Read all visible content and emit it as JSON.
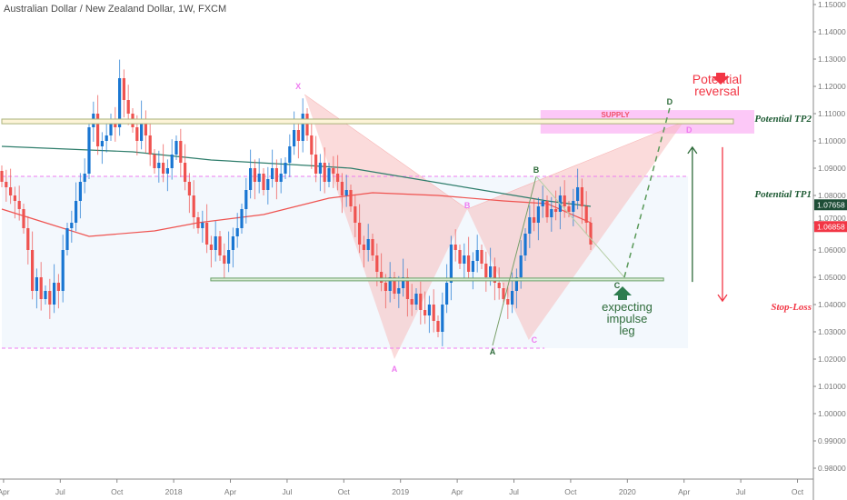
{
  "header": {
    "title": "Australian Dollar / New Zealand Dollar, 1W, FXCM"
  },
  "colors": {
    "up": "#1976d2",
    "down": "#ef5350",
    "ma_slow": "#2e7d6b",
    "ma_fast": "#ef5350",
    "pattern_pink": "#f7b7b7",
    "pattern_label": "#ee7bf0",
    "green": "#2e6b3a",
    "red": "#f23645"
  },
  "chart_data": {
    "type": "candlestick",
    "title": "Australian Dollar / New Zealand Dollar, 1W, FXCM",
    "ylim": [
      0.975,
      1.152
    ],
    "xlim_weeks": [
      0,
      193
    ],
    "y_ticks": [
      "1.15000",
      "1.14000",
      "1.13000",
      "1.12000",
      "1.11000",
      "1.10000",
      "1.09000",
      "1.08000",
      "1.07000",
      "1.06000",
      "1.05000",
      "1.04000",
      "1.03000",
      "1.02000",
      "1.01000",
      "1.00000",
      "0.99000",
      "0.98000"
    ],
    "y_tick_values": [
      1.15,
      1.14,
      1.13,
      1.12,
      1.11,
      1.1,
      1.09,
      1.08,
      1.07,
      1.06,
      1.05,
      1.04,
      1.03,
      1.02,
      1.01,
      1.0,
      0.99,
      0.98
    ],
    "x_ticks": [
      {
        "label": "Apr",
        "week": 0.4
      },
      {
        "label": "Jul",
        "week": 13.4
      },
      {
        "label": "Oct",
        "week": 26.4
      },
      {
        "label": "2018",
        "week": 39.4
      },
      {
        "label": "Apr",
        "week": 52.4
      },
      {
        "label": "Jul",
        "week": 65.4
      },
      {
        "label": "Oct",
        "week": 78.4
      },
      {
        "label": "2019",
        "week": 91.4
      },
      {
        "label": "Apr",
        "week": 104.4
      },
      {
        "label": "Jul",
        "week": 117.4
      },
      {
        "label": "Oct",
        "week": 130.4
      },
      {
        "label": "2020",
        "week": 143.4
      },
      {
        "label": "Apr",
        "week": 156.4
      },
      {
        "label": "Jul",
        "week": 169.4
      },
      {
        "label": "Oct",
        "week": 182.4
      }
    ],
    "closes": [
      1.085,
      1.083,
      1.08,
      1.078,
      1.075,
      1.068,
      1.06,
      1.045,
      1.05,
      1.042,
      1.045,
      1.04,
      1.048,
      1.045,
      1.06,
      1.068,
      1.07,
      1.078,
      1.085,
      1.088,
      1.105,
      1.11,
      1.098,
      1.1,
      1.102,
      1.108,
      1.105,
      1.123,
      1.115,
      1.11,
      1.105,
      1.1,
      1.108,
      1.102,
      1.095,
      1.09,
      1.092,
      1.088,
      1.09,
      1.095,
      1.1,
      1.092,
      1.085,
      1.08,
      1.072,
      1.068,
      1.07,
      1.062,
      1.06,
      1.065,
      1.058,
      1.055,
      1.06,
      1.065,
      1.068,
      1.075,
      1.082,
      1.09,
      1.085,
      1.088,
      1.082,
      1.086,
      1.09,
      1.085,
      1.088,
      1.092,
      1.098,
      1.104,
      1.1,
      1.11,
      1.102,
      1.095,
      1.088,
      1.092,
      1.085,
      1.09,
      1.088,
      1.085,
      1.08,
      1.082,
      1.076,
      1.07,
      1.062,
      1.06,
      1.064,
      1.058,
      1.052,
      1.048,
      1.045,
      1.05,
      1.044,
      1.046,
      1.05,
      1.042,
      1.04,
      1.044,
      1.038,
      1.036,
      1.04,
      1.034,
      1.03,
      1.04,
      1.048,
      1.062,
      1.06,
      1.055,
      1.058,
      1.052,
      1.056,
      1.06,
      1.055,
      1.05,
      1.054,
      1.048,
      1.046,
      1.042,
      1.04,
      1.045,
      1.05,
      1.058,
      1.066,
      1.072,
      1.07,
      1.076,
      1.078,
      1.072,
      1.075,
      1.074,
      1.08,
      1.076,
      1.074,
      1.078,
      1.083,
      1.076,
      1.07,
      1.062
    ],
    "ma_slow": [
      [
        0,
        1.098
      ],
      [
        30,
        1.096
      ],
      [
        48,
        1.093
      ],
      [
        70,
        1.091
      ],
      [
        80,
        1.09
      ],
      [
        95,
        1.086
      ],
      [
        110,
        1.082
      ],
      [
        125,
        1.078
      ],
      [
        135,
        1.076
      ]
    ],
    "ma_fast": [
      [
        0,
        1.075
      ],
      [
        10,
        1.07
      ],
      [
        20,
        1.065
      ],
      [
        35,
        1.067
      ],
      [
        45,
        1.07
      ],
      [
        60,
        1.073
      ],
      [
        75,
        1.079
      ],
      [
        85,
        1.081
      ],
      [
        100,
        1.08
      ],
      [
        115,
        1.078
      ],
      [
        125,
        1.077
      ],
      [
        135,
        1.07
      ]
    ],
    "last_price": {
      "label": "1.07658",
      "value": 1.07658
    },
    "current_price": {
      "label": "1.06858",
      "value": 1.06858
    }
  },
  "drawings": {
    "supply_line": {
      "from_week": 0,
      "to_week": 167.7,
      "top": 1.108,
      "bottom": 1.1063
    },
    "supply_zone": {
      "label": "SUPPLY",
      "from_week": 123.5,
      "to_week": 172.5,
      "top": 1.1113,
      "bottom": 1.1027
    },
    "support_line": {
      "from_week": 47.9,
      "to_week": 151.7,
      "top": 1.0497,
      "bottom": 1.0487
    },
    "range_box": {
      "from_week": 0,
      "to_week": 157.3,
      "top": 1.087,
      "bottom": 1.024
    },
    "range_top_dash": {
      "from_week": 0,
      "to_week": 157.3,
      "price": 1.087
    },
    "range_bottom_dash": {
      "from_week": 0,
      "to_week": 124.4,
      "price": 1.024
    },
    "harmonic": [
      {
        "label": "X",
        "week": 69.4,
        "price": 1.117
      },
      {
        "label": "A",
        "week": 90,
        "price": 1.02
      },
      {
        "label": "B",
        "week": 106.7,
        "price": 1.075
      },
      {
        "label": "C",
        "week": 120.8,
        "price": 1.027
      },
      {
        "label": "D",
        "week": 156.3,
        "price": 1.107
      }
    ],
    "abcd": [
      {
        "label": "A",
        "week": 112.5,
        "price": 1.025
      },
      {
        "label": "B",
        "week": 122.5,
        "price": 1.087
      },
      {
        "label": "C",
        "week": 142.7,
        "price": 1.05
      },
      {
        "label": "D",
        "week": 153.1,
        "price": 1.112
      }
    ],
    "tp_arrow": {
      "week": 158.3,
      "from": 1.0483,
      "to": 1.0977
    },
    "sl_arrow": {
      "week": 165.2,
      "from": 1.0977,
      "to": 1.0413
    },
    "labels": {
      "tp2": "Potential TP2",
      "tp1": "Potential TP1",
      "stop_loss": "Stop-Loss",
      "reversal_line1": "Potential",
      "reversal_line2": "reversal",
      "impulse_line1": "expecting",
      "impulse_line2": "impulse",
      "impulse_line3": "leg"
    }
  }
}
